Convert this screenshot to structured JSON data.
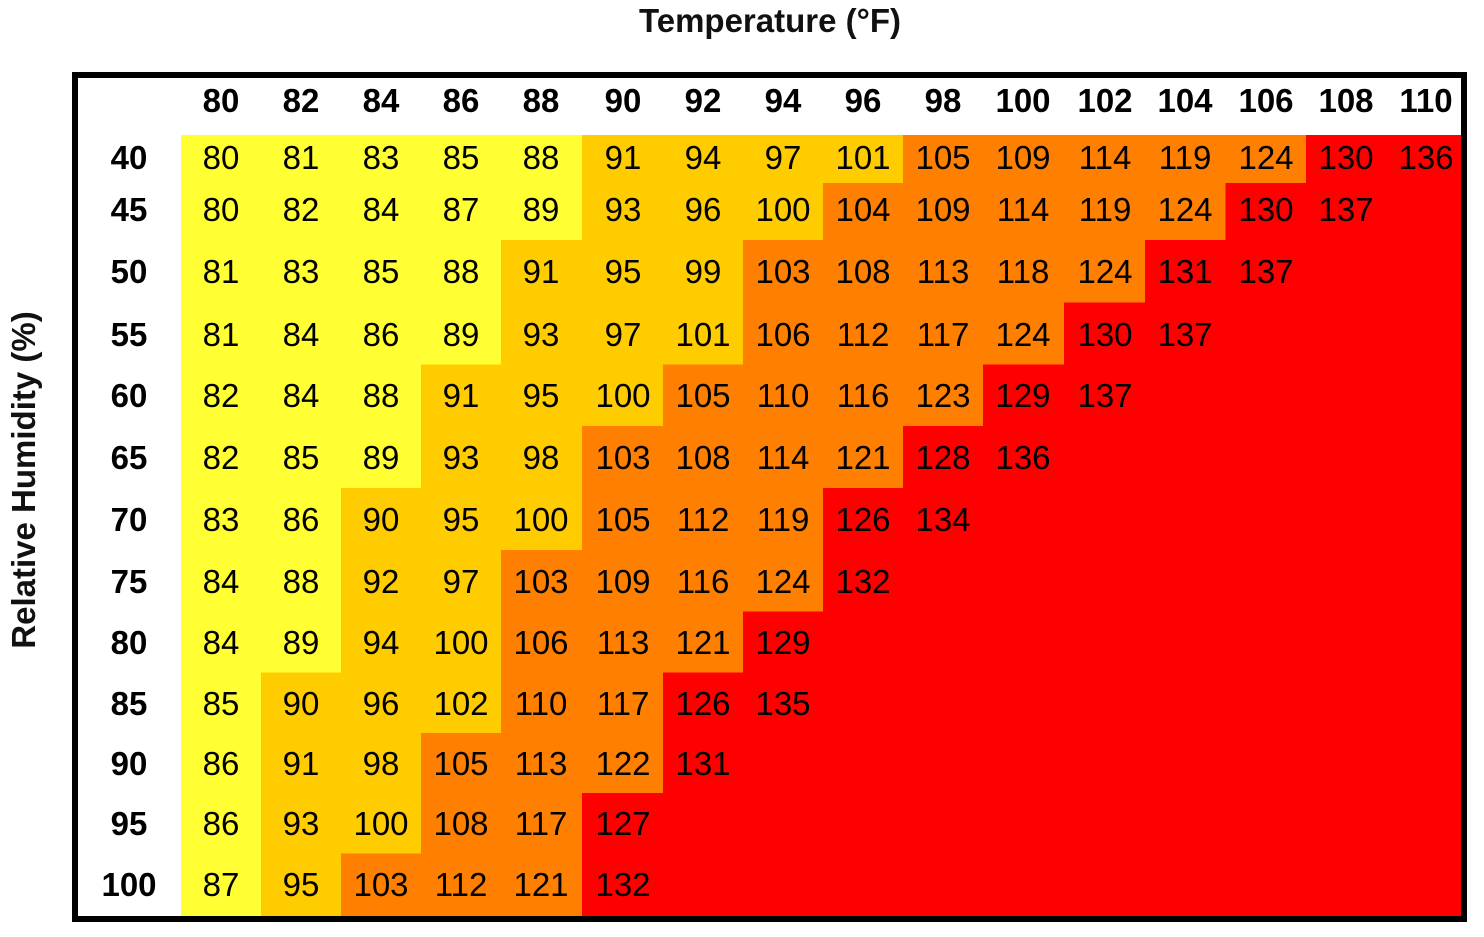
{
  "chart_data": {
    "type": "heatmap",
    "title": "",
    "xlabel": "Temperature (°F)",
    "ylabel": "Relative Humidity (%)",
    "x": [
      "80",
      "82",
      "84",
      "86",
      "88",
      "90",
      "92",
      "94",
      "96",
      "98",
      "100",
      "102",
      "104",
      "106",
      "108",
      "110"
    ],
    "y": [
      "40",
      "45",
      "50",
      "55",
      "60",
      "65",
      "70",
      "75",
      "80",
      "85",
      "90",
      "95",
      "100"
    ],
    "values": [
      [
        80,
        81,
        83,
        85,
        88,
        91,
        94,
        97,
        101,
        105,
        109,
        114,
        119,
        124,
        130,
        136
      ],
      [
        80,
        82,
        84,
        87,
        89,
        93,
        96,
        100,
        104,
        109,
        114,
        119,
        124,
        130,
        137,
        null
      ],
      [
        81,
        83,
        85,
        88,
        91,
        95,
        99,
        103,
        108,
        113,
        118,
        124,
        131,
        137,
        null,
        null
      ],
      [
        81,
        84,
        86,
        89,
        93,
        97,
        101,
        106,
        112,
        117,
        124,
        130,
        137,
        null,
        null,
        null
      ],
      [
        82,
        84,
        88,
        91,
        95,
        100,
        105,
        110,
        116,
        123,
        129,
        137,
        null,
        null,
        null,
        null
      ],
      [
        82,
        85,
        89,
        93,
        98,
        103,
        108,
        114,
        121,
        128,
        136,
        null,
        null,
        null,
        null,
        null
      ],
      [
        83,
        86,
        90,
        95,
        100,
        105,
        112,
        119,
        126,
        134,
        null,
        null,
        null,
        null,
        null,
        null
      ],
      [
        84,
        88,
        92,
        97,
        103,
        109,
        116,
        124,
        132,
        null,
        null,
        null,
        null,
        null,
        null,
        null
      ],
      [
        84,
        89,
        94,
        100,
        106,
        113,
        121,
        129,
        null,
        null,
        null,
        null,
        null,
        null,
        null,
        null
      ],
      [
        85,
        90,
        96,
        102,
        110,
        117,
        126,
        135,
        null,
        null,
        null,
        null,
        null,
        null,
        null,
        null
      ],
      [
        86,
        91,
        98,
        105,
        113,
        122,
        131,
        null,
        null,
        null,
        null,
        null,
        null,
        null,
        null,
        null
      ],
      [
        86,
        93,
        100,
        108,
        117,
        127,
        null,
        null,
        null,
        null,
        null,
        null,
        null,
        null,
        null,
        null
      ],
      [
        87,
        95,
        103,
        112,
        121,
        132,
        null,
        null,
        null,
        null,
        null,
        null,
        null,
        null,
        null,
        null
      ]
    ],
    "colors": {
      "caution": "#FFFF33",
      "extreme_caution": "#FFCC00",
      "danger": "#FF7F00",
      "extreme_danger": "#FF0000",
      "text": "#000000"
    },
    "grid": false,
    "legend": "none"
  }
}
